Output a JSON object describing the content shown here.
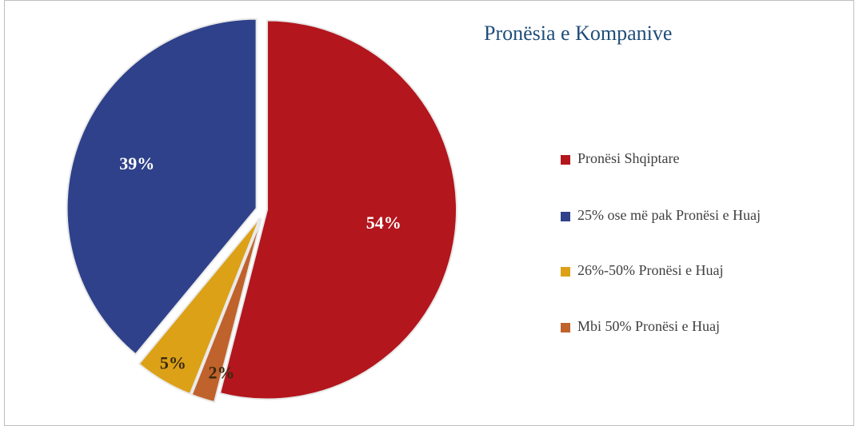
{
  "chart_data": {
    "type": "pie",
    "title": "Pronësia e Kompanive",
    "categories": [
      "Pronësi Shqiptare",
      "25% ose më pak Pronësi e Huaj",
      "26%-50% Pronësi e Huaj",
      "Mbi 50% Pronësi e Huaj"
    ],
    "values": [
      54,
      39,
      5,
      2
    ],
    "value_labels": [
      "54%",
      "39%",
      "5%",
      "2%"
    ],
    "colors": [
      "#b3161d",
      "#2f418a",
      "#dca116",
      "#c0622b"
    ],
    "legend": "right"
  }
}
